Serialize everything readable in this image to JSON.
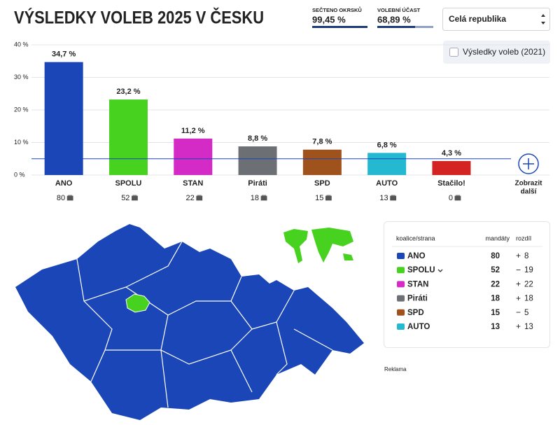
{
  "header": {
    "title": "VÝSLEDKY VOLEB 2025 V ČESKU",
    "stats": [
      {
        "label": "SEČTENO OKRSKŮ",
        "value": "99,45 %"
      },
      {
        "label": "VOLEBNÍ ÚČAST",
        "value": "68,89 %"
      }
    ],
    "region_select": "Celá republika",
    "compare_checkbox": "Výsledky voleb (2021)"
  },
  "chart_data": {
    "type": "bar",
    "categories": [
      "ANO",
      "SPOLU",
      "STAN",
      "Piráti",
      "SPD",
      "AUTO",
      "Stačilo!"
    ],
    "values": [
      34.7,
      23.2,
      11.2,
      8.8,
      7.8,
      6.8,
      4.3
    ],
    "value_labels": [
      "34,7 %",
      "23,2 %",
      "11,2 %",
      "8,8 %",
      "7,8 %",
      "6,8 %",
      "4,3 %"
    ],
    "colors": [
      "#1a46b8",
      "#46d21e",
      "#d52bc6",
      "#6c6f73",
      "#a0521c",
      "#24b9d0",
      "#d42323"
    ],
    "ylim": [
      0,
      40
    ],
    "yticks": [
      {
        "value": 0,
        "label": "0 %"
      },
      {
        "value": 10,
        "label": "10 %"
      },
      {
        "value": 20,
        "label": "20 %"
      },
      {
        "value": 30,
        "label": "30 %"
      },
      {
        "value": 40,
        "label": "40 %"
      }
    ],
    "grid": true,
    "threshold": 5,
    "seats": [
      80,
      52,
      22,
      18,
      15,
      13,
      0
    ],
    "more_button": [
      "Zobrazit",
      "další"
    ]
  },
  "table": {
    "columns": [
      "koalice/strana",
      "mandáty",
      "rozdíl"
    ],
    "rows": [
      {
        "party": "ANO",
        "color": "#1a46b8",
        "seats": 80,
        "sign": "+",
        "diff": 8
      },
      {
        "party": "SPOLU",
        "color": "#46d21e",
        "seats": 52,
        "sign": "−",
        "diff": 19
      },
      {
        "party": "STAN",
        "color": "#d52bc6",
        "seats": 22,
        "sign": "+",
        "diff": 22
      },
      {
        "party": "Piráti",
        "color": "#6c6f73",
        "seats": 18,
        "sign": "+",
        "diff": 18
      },
      {
        "party": "SPD",
        "color": "#a0521c",
        "seats": 15,
        "sign": "−",
        "diff": 5
      },
      {
        "party": "AUTO",
        "color": "#24b9d0",
        "seats": 13,
        "sign": "+",
        "diff": 13
      }
    ]
  },
  "ad_label": "Reklama"
}
